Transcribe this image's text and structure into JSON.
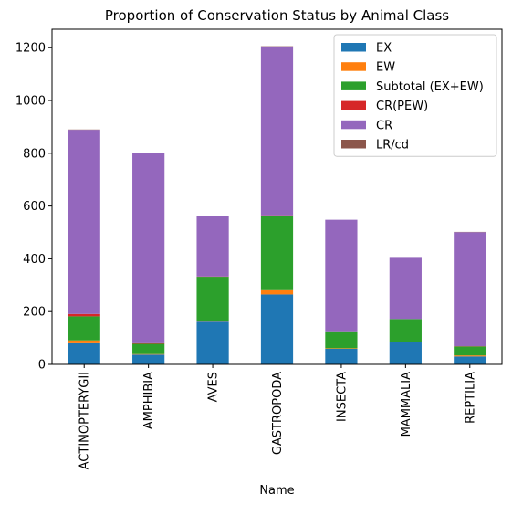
{
  "chart_data": {
    "type": "bar",
    "stacked": true,
    "title": "Proportion of Conservation Status by Animal Class",
    "xlabel": "Name",
    "ylabel": "",
    "ylim": [
      0,
      1270
    ],
    "yticks": [
      0,
      200,
      400,
      600,
      800,
      1000,
      1200
    ],
    "categories": [
      "ACTINOPTERYGII",
      "AMPHIBIA",
      "AVES",
      "GASTROPODA",
      "INSECTA",
      "MAMMALIA",
      "REPTILIA"
    ],
    "series": [
      {
        "name": "EX",
        "color": "#1f77b4",
        "values": [
          80,
          37,
          162,
          265,
          59,
          85,
          30
        ]
      },
      {
        "name": "EW",
        "color": "#ff7f0e",
        "values": [
          11,
          2,
          4,
          16,
          2,
          1,
          4
        ]
      },
      {
        "name": "Subtotal (EX+EW)",
        "color": "#2ca02c",
        "values": [
          91,
          39,
          166,
          281,
          61,
          86,
          34
        ]
      },
      {
        "name": "CR(PEW)",
        "color": "#d62728",
        "values": [
          9,
          2,
          1,
          3,
          0,
          0,
          1
        ]
      },
      {
        "name": "CR",
        "color": "#9467bd",
        "values": [
          698,
          720,
          228,
          640,
          426,
          235,
          432
        ]
      },
      {
        "name": "LR/cd",
        "color": "#8c564b",
        "values": [
          1,
          0,
          0,
          1,
          0,
          0,
          1
        ]
      }
    ],
    "legend_position": "top-right",
    "grid": false
  }
}
